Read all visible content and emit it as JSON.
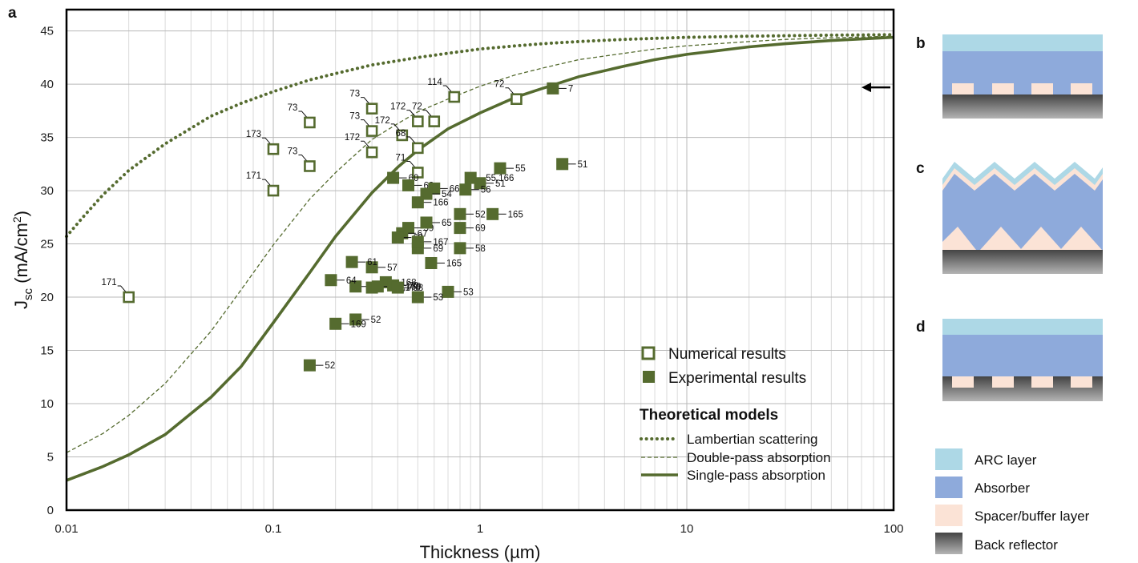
{
  "panels": {
    "a": "a",
    "b": "b",
    "c": "c",
    "d": "d"
  },
  "colors": {
    "series": "#556b2f",
    "arc": "#add8e6",
    "absorber": "#8eaadb",
    "spacer": "#fbe3d6",
    "reflector_top": "#444444",
    "reflector_bottom": "#b4b4b4"
  },
  "chart_data": {
    "type": "scatter",
    "x_scale": "log",
    "xlim": [
      0.01,
      100
    ],
    "ylim": [
      0,
      47
    ],
    "xlabel": "Thickness (µm)",
    "ylabel_main": "J",
    "ylabel_sub": "sc",
    "ylabel_units": " (mA/cm",
    "ylabel_sup": "2",
    "ylabel_close": ")",
    "x_ticks": [
      {
        "value": 0.01,
        "label": "0.01"
      },
      {
        "value": 0.1,
        "label": "0.1"
      },
      {
        "value": 1,
        "label": "1"
      },
      {
        "value": 10,
        "label": "10"
      },
      {
        "value": 100,
        "label": "100"
      }
    ],
    "y_ticks": [
      0,
      5,
      10,
      15,
      20,
      25,
      30,
      35,
      40,
      45
    ],
    "grid": true,
    "arrow_annotation": {
      "y": 39.7
    },
    "numerical": [
      {
        "x": 0.02,
        "y": 20.0,
        "label": "171"
      },
      {
        "x": 0.1,
        "y": 33.9,
        "label": "173"
      },
      {
        "x": 0.1,
        "y": 30.0,
        "label": "171"
      },
      {
        "x": 0.15,
        "y": 36.4,
        "label": "73"
      },
      {
        "x": 0.15,
        "y": 32.3,
        "label": "73"
      },
      {
        "x": 0.3,
        "y": 37.7,
        "label": "73"
      },
      {
        "x": 0.3,
        "y": 35.6,
        "label": "73"
      },
      {
        "x": 0.3,
        "y": 33.6,
        "label": "172"
      },
      {
        "x": 0.42,
        "y": 35.2,
        "label": "172"
      },
      {
        "x": 0.5,
        "y": 36.5,
        "label": "172"
      },
      {
        "x": 0.6,
        "y": 36.5,
        "label": "72"
      },
      {
        "x": 0.5,
        "y": 34.0,
        "label": "68"
      },
      {
        "x": 0.5,
        "y": 31.7,
        "label": "71"
      },
      {
        "x": 0.75,
        "y": 38.8,
        "label": "114"
      },
      {
        "x": 1.5,
        "y": 38.6,
        "label": "72"
      }
    ],
    "experimental": [
      {
        "x": 2.25,
        "y": 39.6,
        "label": "7"
      },
      {
        "x": 2.5,
        "y": 32.5,
        "label": "51"
      },
      {
        "x": 0.38,
        "y": 31.2,
        "label": "60"
      },
      {
        "x": 0.45,
        "y": 30.5,
        "label": "62"
      },
      {
        "x": 0.6,
        "y": 30.2,
        "label": "66"
      },
      {
        "x": 0.9,
        "y": 31.2,
        "label": "55,166"
      },
      {
        "x": 1.25,
        "y": 32.1,
        "label": "55"
      },
      {
        "x": 1.0,
        "y": 30.7,
        "label": "51"
      },
      {
        "x": 0.85,
        "y": 30.1,
        "label": "56"
      },
      {
        "x": 0.55,
        "y": 29.7,
        "label": "54"
      },
      {
        "x": 0.5,
        "y": 28.9,
        "label": "166"
      },
      {
        "x": 0.8,
        "y": 27.8,
        "label": "52"
      },
      {
        "x": 1.15,
        "y": 27.8,
        "label": "165"
      },
      {
        "x": 0.45,
        "y": 26.5,
        "label": "59"
      },
      {
        "x": 0.42,
        "y": 26.0,
        "label": "67"
      },
      {
        "x": 0.55,
        "y": 27.0,
        "label": "65"
      },
      {
        "x": 0.4,
        "y": 25.6,
        "label": "63"
      },
      {
        "x": 0.8,
        "y": 26.5,
        "label": "69"
      },
      {
        "x": 0.5,
        "y": 24.6,
        "label": "69"
      },
      {
        "x": 0.8,
        "y": 24.6,
        "label": "58"
      },
      {
        "x": 0.58,
        "y": 23.2,
        "label": "165"
      },
      {
        "x": 0.5,
        "y": 25.2,
        "label": "167"
      },
      {
        "x": 0.3,
        "y": 22.8,
        "label": "57"
      },
      {
        "x": 0.24,
        "y": 23.3,
        "label": "61"
      },
      {
        "x": 0.25,
        "y": 21.0,
        "label": "67"
      },
      {
        "x": 0.19,
        "y": 21.6,
        "label": "64"
      },
      {
        "x": 0.3,
        "y": 20.9,
        "label": "166,170"
      },
      {
        "x": 0.35,
        "y": 21.4,
        "label": "168"
      },
      {
        "x": 0.32,
        "y": 21.0,
        "label": "56,169"
      },
      {
        "x": 0.38,
        "y": 21.1,
        "label": "70"
      },
      {
        "x": 0.4,
        "y": 20.9,
        "label": "58"
      },
      {
        "x": 0.7,
        "y": 20.5,
        "label": "53"
      },
      {
        "x": 0.5,
        "y": 20.0,
        "label": "53"
      },
      {
        "x": 0.25,
        "y": 17.9,
        "label": "52"
      },
      {
        "x": 0.2,
        "y": 17.5,
        "label": "169"
      },
      {
        "x": 0.15,
        "y": 13.6,
        "label": "52"
      }
    ],
    "curves": {
      "lambertian": {
        "x": [
          0.01,
          0.012,
          0.015,
          0.02,
          0.03,
          0.05,
          0.07,
          0.1,
          0.15,
          0.2,
          0.3,
          0.5,
          0.7,
          1,
          1.5,
          2,
          3,
          5,
          7,
          10,
          20,
          30,
          50,
          100
        ],
        "y": [
          25.7,
          27.5,
          29.6,
          31.9,
          34.4,
          37.0,
          38.2,
          39.3,
          40.4,
          41.0,
          41.8,
          42.5,
          42.9,
          43.3,
          43.6,
          43.8,
          44.0,
          44.2,
          44.3,
          44.4,
          44.5,
          44.55,
          44.6,
          44.65
        ]
      },
      "double_pass": {
        "x": [
          0.01,
          0.015,
          0.02,
          0.03,
          0.05,
          0.07,
          0.1,
          0.15,
          0.2,
          0.3,
          0.4,
          0.5,
          0.7,
          1,
          1.5,
          2,
          3,
          5,
          7,
          10,
          20,
          30,
          50,
          100
        ],
        "y": [
          5.4,
          7.2,
          8.9,
          11.9,
          16.8,
          20.7,
          24.9,
          29.2,
          31.7,
          34.8,
          36.3,
          37.4,
          38.6,
          39.8,
          40.9,
          41.5,
          42.3,
          42.9,
          43.3,
          43.6,
          44.0,
          44.2,
          44.35,
          44.5
        ]
      },
      "single_pass": {
        "x": [
          0.01,
          0.015,
          0.02,
          0.03,
          0.05,
          0.07,
          0.1,
          0.15,
          0.2,
          0.3,
          0.4,
          0.5,
          0.7,
          1,
          1.5,
          2,
          3,
          5,
          7,
          10,
          20,
          30,
          50,
          100
        ],
        "y": [
          2.8,
          4.1,
          5.2,
          7.1,
          10.6,
          13.5,
          17.6,
          22.3,
          25.7,
          29.8,
          32.2,
          33.8,
          35.8,
          37.3,
          38.8,
          39.6,
          40.7,
          41.7,
          42.3,
          42.8,
          43.5,
          43.8,
          44.1,
          44.4
        ]
      }
    }
  },
  "legend": {
    "numerical": "Numerical results",
    "experimental": "Experimental results",
    "models_title": "Theoretical models",
    "lambertian": "Lambertian scattering",
    "double_pass": "Double-pass absorption",
    "single_pass": "Single-pass absorption"
  },
  "layer_legend": {
    "arc": "ARC layer",
    "absorber": "Absorber",
    "spacer": "Spacer/buffer layer",
    "reflector": "Back reflector"
  }
}
